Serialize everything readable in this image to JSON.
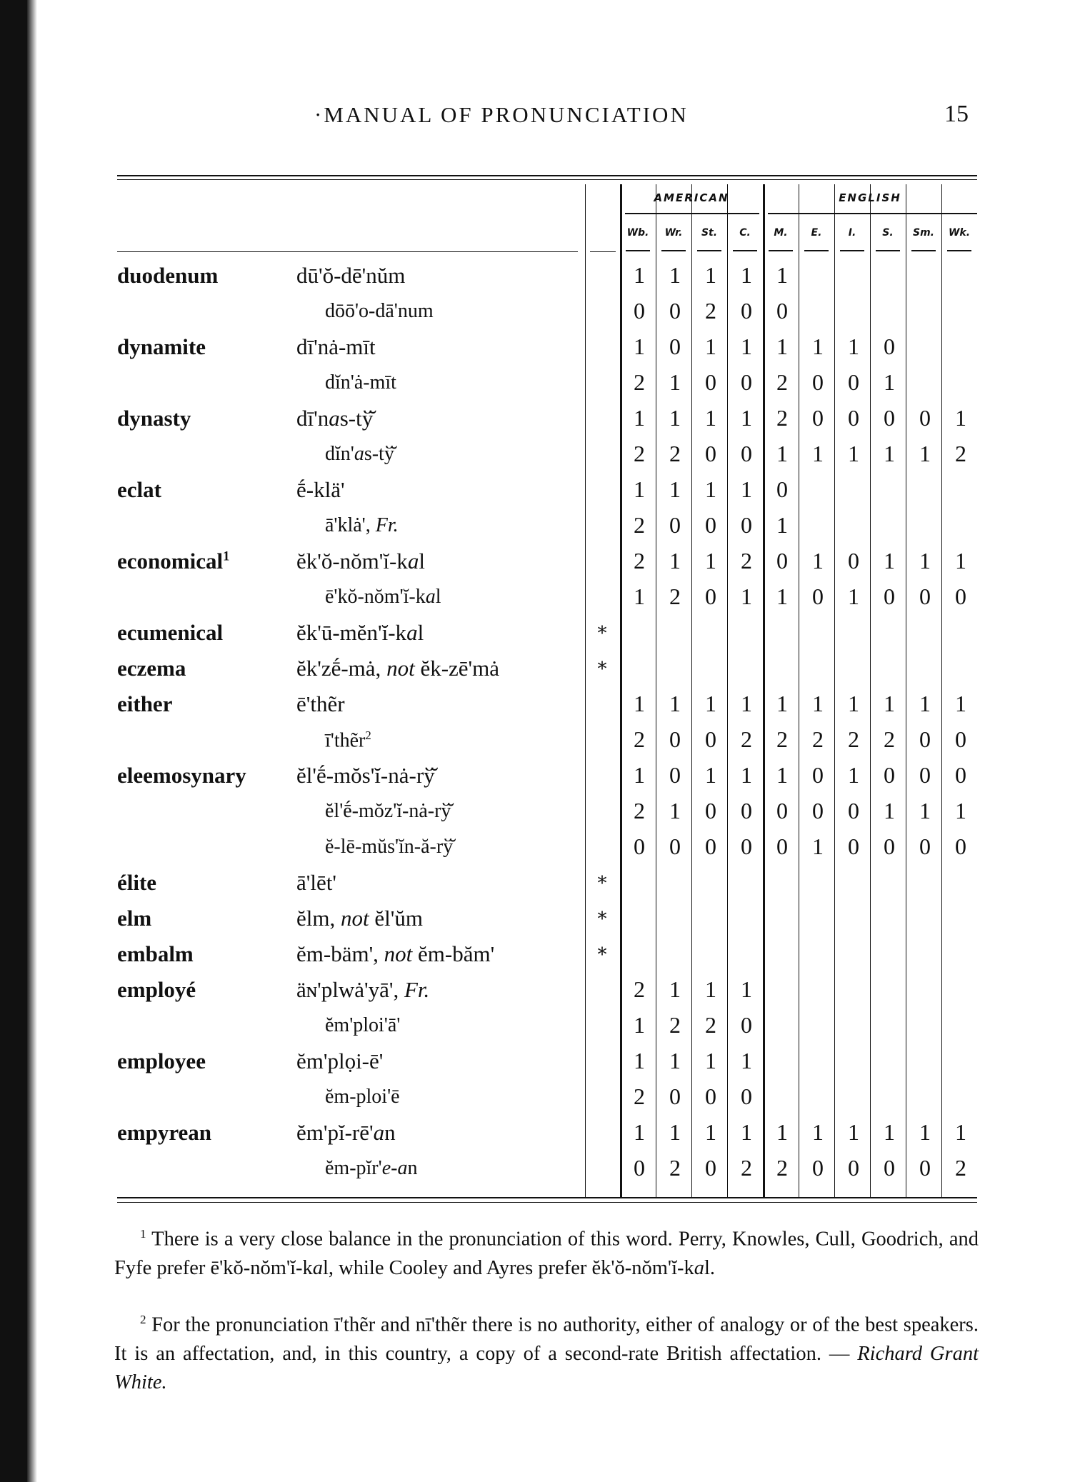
{
  "header": {
    "running_head": "·MANUAL OF PRONUNCIATION",
    "page_number": "15"
  },
  "table": {
    "groups": [
      "AMERICAN",
      "ENGLISH"
    ],
    "columns": [
      "Wb.",
      "Wr.",
      "St.",
      "C.",
      "M.",
      "E.",
      "I.",
      "S.",
      "Sm.",
      "Wk."
    ],
    "rows": [
      {
        "word": "duodenum",
        "pron": [
          {
            "t": "dū'ŏ-dē'nŭm"
          }
        ],
        "values": [
          1,
          1,
          1,
          1,
          1,
          null,
          null,
          null,
          null,
          null
        ]
      },
      {
        "word": "",
        "sub": true,
        "pron": [
          {
            "t": "dōō'o-dā'num"
          }
        ],
        "values": [
          0,
          0,
          2,
          0,
          0,
          null,
          null,
          null,
          null,
          null
        ]
      },
      {
        "word": "dynamite",
        "pron": [
          {
            "t": "dī'nȧ-mīt"
          }
        ],
        "values": [
          1,
          0,
          1,
          1,
          1,
          1,
          1,
          0,
          null,
          null
        ]
      },
      {
        "word": "",
        "sub": true,
        "pron": [
          {
            "t": "dĭn'ȧ-mīt"
          }
        ],
        "values": [
          2,
          1,
          0,
          0,
          2,
          0,
          0,
          1,
          null,
          null
        ]
      },
      {
        "word": "dynasty",
        "pron": [
          {
            "t": "dī'n"
          },
          {
            "t": "a",
            "i": true
          },
          {
            "t": "s-tў̆"
          }
        ],
        "values": [
          1,
          1,
          1,
          1,
          2,
          0,
          0,
          0,
          0,
          1
        ]
      },
      {
        "word": "",
        "sub": true,
        "pron": [
          {
            "t": "dĭn'"
          },
          {
            "t": "a",
            "i": true
          },
          {
            "t": "s-tў̆"
          }
        ],
        "values": [
          2,
          2,
          0,
          0,
          1,
          1,
          1,
          1,
          1,
          2
        ]
      },
      {
        "word": "eclat",
        "pron": [
          {
            "t": "ḗ-klä'"
          }
        ],
        "values": [
          1,
          1,
          1,
          1,
          0,
          null,
          null,
          null,
          null,
          null
        ]
      },
      {
        "word": "",
        "sub": true,
        "pron": [
          {
            "t": "ā'klȧ', "
          },
          {
            "t": "Fr.",
            "i": true
          }
        ],
        "values": [
          2,
          0,
          0,
          0,
          1,
          null,
          null,
          null,
          null,
          null
        ]
      },
      {
        "word": "economical",
        "sup": "1",
        "pron": [
          {
            "t": "ĕk'ŏ-nŏm'ĭ-k"
          },
          {
            "t": "a",
            "i": true
          },
          {
            "t": "l"
          }
        ],
        "values": [
          2,
          1,
          1,
          2,
          0,
          1,
          0,
          1,
          1,
          1
        ]
      },
      {
        "word": "",
        "sub": true,
        "pron": [
          {
            "t": "ē'kŏ-nŏm'ĭ-k"
          },
          {
            "t": "a",
            "i": true
          },
          {
            "t": "l"
          }
        ],
        "values": [
          1,
          2,
          0,
          1,
          1,
          0,
          1,
          0,
          0,
          0
        ]
      },
      {
        "word": "ecumenical",
        "star": "*",
        "pron": [
          {
            "t": "ĕk'ū-mĕn'ĭ-k"
          },
          {
            "t": "a",
            "i": true
          },
          {
            "t": "l"
          }
        ],
        "values": [
          null,
          null,
          null,
          null,
          null,
          null,
          null,
          null,
          null,
          null
        ]
      },
      {
        "word": "eczema",
        "star": "*",
        "pron": [
          {
            "t": "ĕk'zḗ-mȧ, "
          },
          {
            "t": "not",
            "i": true
          },
          {
            "t": " ĕk-zē'mȧ"
          }
        ],
        "values": [
          null,
          null,
          null,
          null,
          null,
          null,
          null,
          null,
          null,
          null
        ]
      },
      {
        "word": "either",
        "pron": [
          {
            "t": "ē'thẽr"
          }
        ],
        "values": [
          1,
          1,
          1,
          1,
          1,
          1,
          1,
          1,
          1,
          1
        ]
      },
      {
        "word": "",
        "sub": true,
        "pron": [
          {
            "t": "ī'thẽr"
          }
        ],
        "sup": "2",
        "values": [
          2,
          0,
          0,
          2,
          2,
          2,
          2,
          2,
          0,
          0
        ]
      },
      {
        "word": "eleemosynary",
        "pron": [
          {
            "t": "ĕl'ḗ-mŏs'ĭ-nȧ-rў̆"
          }
        ],
        "values": [
          1,
          0,
          1,
          1,
          1,
          0,
          1,
          0,
          0,
          0
        ]
      },
      {
        "word": "",
        "sub": true,
        "pron": [
          {
            "t": "ĕl'ḗ-mŏz'ĭ-nȧ-rў̆"
          }
        ],
        "values": [
          2,
          1,
          0,
          0,
          0,
          0,
          0,
          1,
          1,
          1
        ]
      },
      {
        "word": "",
        "sub": true,
        "pron": [
          {
            "t": "ĕ-lē-mŭs'ĭn-ă-rў̆"
          }
        ],
        "values": [
          0,
          0,
          0,
          0,
          0,
          1,
          0,
          0,
          0,
          0
        ]
      },
      {
        "word": "élite",
        "star": "*",
        "pron": [
          {
            "t": "ā'lēt'"
          }
        ],
        "values": [
          null,
          null,
          null,
          null,
          null,
          null,
          null,
          null,
          null,
          null
        ]
      },
      {
        "word": "elm",
        "star": "*",
        "pron": [
          {
            "t": "ĕlm, "
          },
          {
            "t": "not",
            "i": true
          },
          {
            "t": " ĕl'ŭm"
          }
        ],
        "values": [
          null,
          null,
          null,
          null,
          null,
          null,
          null,
          null,
          null,
          null
        ]
      },
      {
        "word": "embalm",
        "star": "*",
        "pron": [
          {
            "t": "ĕm-bäm', "
          },
          {
            "t": "not",
            "i": true
          },
          {
            "t": " ĕm-băm'"
          }
        ],
        "values": [
          null,
          null,
          null,
          null,
          null,
          null,
          null,
          null,
          null,
          null
        ]
      },
      {
        "word": "employé",
        "pron": [
          {
            "t": "äɴ'plwȧ'yā', "
          },
          {
            "t": "Fr.",
            "i": true
          }
        ],
        "values": [
          2,
          1,
          1,
          1,
          null,
          null,
          null,
          null,
          null,
          null
        ]
      },
      {
        "word": "",
        "sub": true,
        "pron": [
          {
            "t": "ĕm'ploi'ā'"
          }
        ],
        "values": [
          1,
          2,
          2,
          0,
          null,
          null,
          null,
          null,
          null,
          null
        ]
      },
      {
        "word": "employee",
        "pron": [
          {
            "t": "ĕm'plọi-ē'"
          }
        ],
        "values": [
          1,
          1,
          1,
          1,
          null,
          null,
          null,
          null,
          null,
          null
        ]
      },
      {
        "word": "",
        "sub": true,
        "pron": [
          {
            "t": "ĕm-ploi'ē"
          }
        ],
        "values": [
          2,
          0,
          0,
          0,
          null,
          null,
          null,
          null,
          null,
          null
        ]
      },
      {
        "word": "empyrean",
        "pron": [
          {
            "t": "ĕm'pĭ-rē'"
          },
          {
            "t": "a",
            "i": true
          },
          {
            "t": "n"
          }
        ],
        "values": [
          1,
          1,
          1,
          1,
          1,
          1,
          1,
          1,
          1,
          1
        ]
      },
      {
        "word": "",
        "sub": true,
        "pron": [
          {
            "t": "ĕm-pĭr'"
          },
          {
            "t": "e-a",
            "i": true
          },
          {
            "t": "n"
          }
        ],
        "values": [
          0,
          2,
          0,
          2,
          2,
          0,
          0,
          0,
          0,
          2
        ]
      }
    ]
  },
  "footnotes": [
    [
      {
        "t": "1",
        "sup": true
      },
      {
        "t": " There is a very close balance in the pronunciation of this word.  Perry, Knowles, Cull, Goodrich, and Fyfe prefer ē'kŏ-nŏm'ĭ-k"
      },
      {
        "t": "a",
        "i": true
      },
      {
        "t": "l, while Cooley and Ayres prefer ĕk'ŏ-nŏm'ĭ-k"
      },
      {
        "t": "a",
        "i": true
      },
      {
        "t": "l."
      }
    ],
    [
      {
        "t": "2",
        "sup": true
      },
      {
        "t": " For the pronunciation ī'thẽr and nī'thẽr there is no authority, either of analogy or of the best speakers.  It is an affectation, and, in this country, a copy of a second-rate British affectation. — "
      },
      {
        "t": "Richard Grant White.",
        "i": true
      }
    ]
  ]
}
